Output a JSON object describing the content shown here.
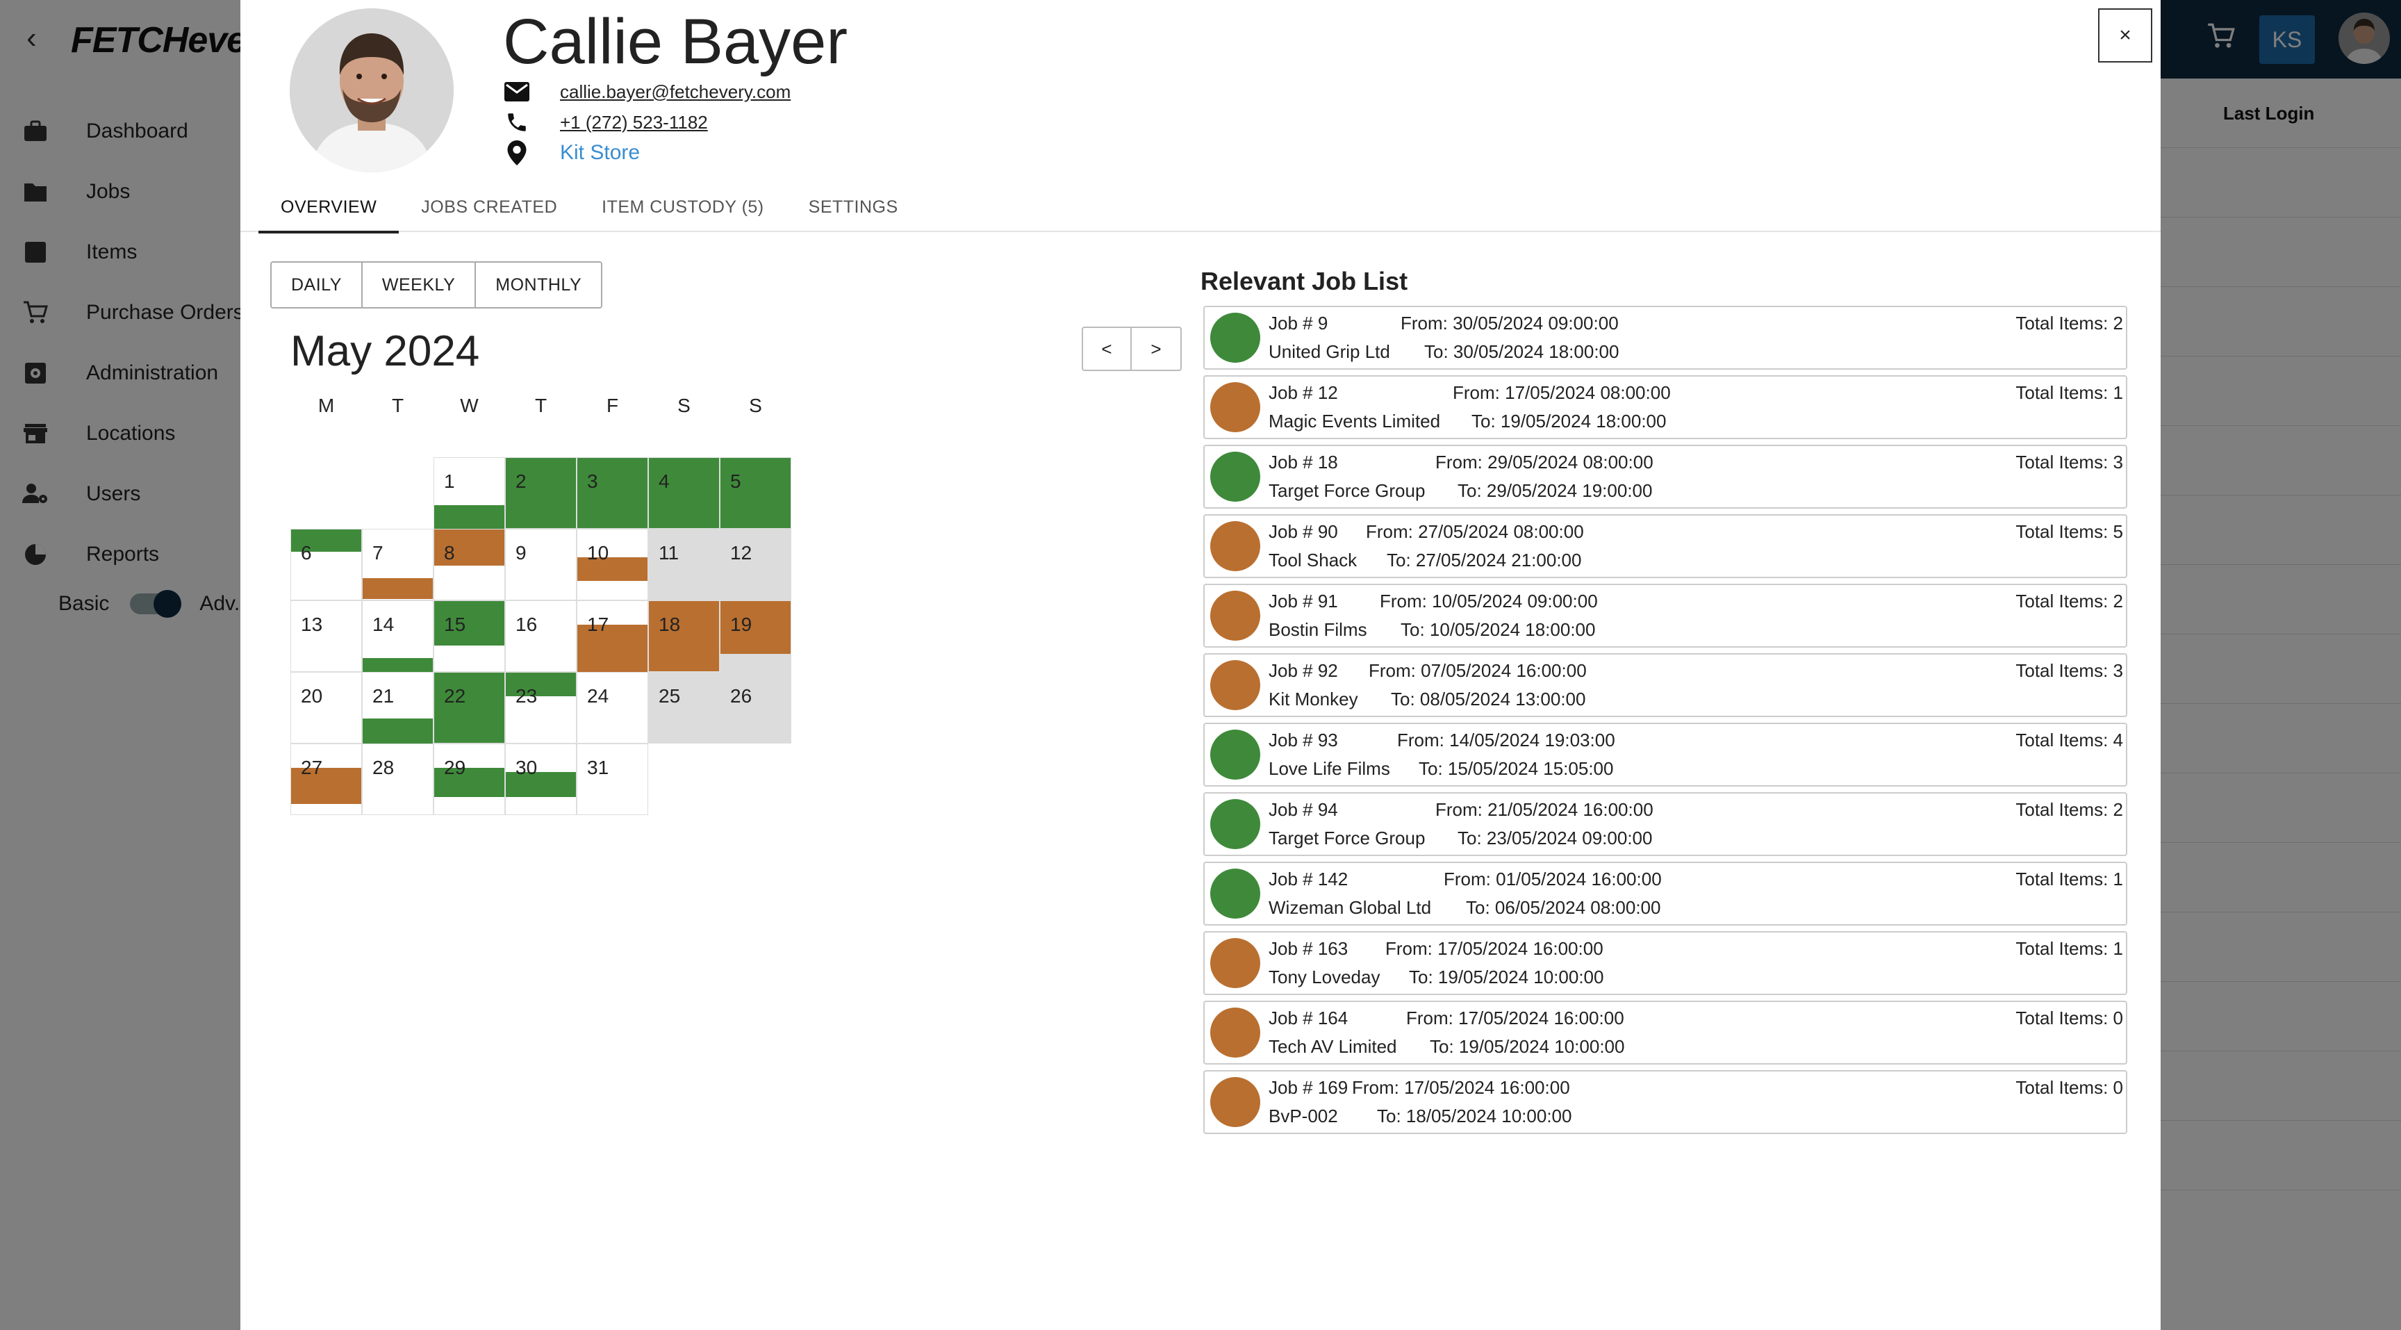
{
  "app": {
    "logo": "FETCHevery",
    "nav": [
      {
        "label": "Dashboard",
        "icon": "briefcase-icon"
      },
      {
        "label": "Jobs",
        "icon": "folder-icon"
      },
      {
        "label": "Items",
        "icon": "square-icon"
      },
      {
        "label": "Purchase Orders",
        "icon": "cart-icon"
      },
      {
        "label": "Administration",
        "icon": "gear-icon"
      },
      {
        "label": "Locations",
        "icon": "store-icon"
      },
      {
        "label": "Users",
        "icon": "user-gear-icon"
      },
      {
        "label": "Reports",
        "icon": "pie-chart-icon"
      }
    ],
    "mode_basic": "Basic",
    "mode_adv": "Adv.",
    "table_header_last_login": "Last Login",
    "user_initials": "KS"
  },
  "profile": {
    "name": "Callie Bayer",
    "email": "callie.bayer@fetchevery.com",
    "phone": "+1 (272) 523-1182",
    "location": "Kit Store"
  },
  "close_label": "×",
  "tabs": [
    {
      "label": "OVERVIEW",
      "active": true
    },
    {
      "label": "JOBS CREATED",
      "active": false
    },
    {
      "label": "ITEM CUSTODY (5)",
      "active": false
    },
    {
      "label": "SETTINGS",
      "active": false
    }
  ],
  "view_switch": [
    "DAILY",
    "WEEKLY",
    "MONTHLY"
  ],
  "calendar": {
    "title": "May 2024",
    "prev_label": "<",
    "next_label": ">",
    "weekdays": [
      "M",
      "T",
      "W",
      "T",
      "F",
      "S",
      "S"
    ],
    "colors": {
      "green": "#3e8a3a",
      "orange": "#b96f30",
      "weekend": "#dcdcdc"
    }
  },
  "job_list": {
    "title": "Relevant Job List",
    "colors": {
      "green": "#3e8a3a",
      "orange": "#b96f30"
    },
    "jobs": [
      {
        "job": "Job # 9",
        "client": "United Grip Ltd",
        "from": "From: 30/05/2024 09:00:00",
        "to": "To: 30/05/2024 18:00:00",
        "total": "Total Items: 2",
        "status": "green"
      },
      {
        "job": "Job # 12",
        "client": "Magic Events Limited",
        "from": "From: 17/05/2024 08:00:00",
        "to": "To: 19/05/2024 18:00:00",
        "total": "Total Items: 1",
        "status": "orange"
      },
      {
        "job": "Job # 18",
        "client": "Target Force Group",
        "from": "From: 29/05/2024 08:00:00",
        "to": "To: 29/05/2024 19:00:00",
        "total": "Total Items: 3",
        "status": "green"
      },
      {
        "job": "Job # 90",
        "client": "Tool Shack",
        "from": "From: 27/05/2024 08:00:00",
        "to": "To: 27/05/2024 21:00:00",
        "total": "Total Items: 5",
        "status": "orange"
      },
      {
        "job": "Job # 91",
        "client": "Bostin Films",
        "from": "From: 10/05/2024 09:00:00",
        "to": "To: 10/05/2024 18:00:00",
        "total": "Total Items: 2",
        "status": "orange"
      },
      {
        "job": "Job # 92",
        "client": "Kit Monkey",
        "from": "From: 07/05/2024 16:00:00",
        "to": "To: 08/05/2024 13:00:00",
        "total": "Total Items: 3",
        "status": "orange"
      },
      {
        "job": "Job # 93",
        "client": "Love Life Films",
        "from": "From: 14/05/2024 19:03:00",
        "to": "To: 15/05/2024 15:05:00",
        "total": "Total Items: 4",
        "status": "green"
      },
      {
        "job": "Job # 94",
        "client": "Target Force Group",
        "from": "From: 21/05/2024 16:00:00",
        "to": "To: 23/05/2024 09:00:00",
        "total": "Total Items: 2",
        "status": "green"
      },
      {
        "job": "Job # 142",
        "client": "Wizeman Global Ltd",
        "from": "From: 01/05/2024 16:00:00",
        "to": "To: 06/05/2024 08:00:00",
        "total": "Total Items: 1",
        "status": "green"
      },
      {
        "job": "Job # 163",
        "client": "Tony Loveday",
        "from": "From: 17/05/2024 16:00:00",
        "to": "To: 19/05/2024 10:00:00",
        "total": "Total Items: 1",
        "status": "orange"
      },
      {
        "job": "Job # 164",
        "client": "Tech AV Limited",
        "from": "From: 17/05/2024 16:00:00",
        "to": "To: 19/05/2024 10:00:00",
        "total": "Total Items: 0",
        "status": "orange"
      },
      {
        "job": "Job # 169",
        "client": "BvP-002",
        "from": "From: 17/05/2024 16:00:00",
        "to": "To: 18/05/2024 10:00:00",
        "total": "Total Items: 0",
        "status": "orange"
      }
    ]
  }
}
